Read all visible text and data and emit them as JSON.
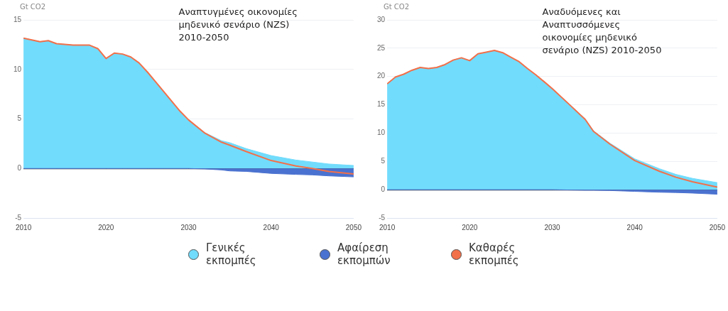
{
  "chart_data": [
    {
      "type": "area",
      "title": "Αναπτυγμένες οικονομίες μηδενικό σενάριο (NZS) 2010-2050",
      "ylabel": "Gt CO2",
      "legend": "bottom",
      "grid": "y",
      "marker": "none",
      "x": [
        2010,
        2012,
        2013,
        2014,
        2016,
        2018,
        2019,
        2020,
        2021,
        2022,
        2023,
        2024,
        2025,
        2026,
        2027,
        2028,
        2029,
        2030,
        2032,
        2034,
        2035,
        2037,
        2040,
        2043,
        2045,
        2047,
        2050
      ],
      "xlim": [
        2010,
        2050
      ],
      "xticks": [
        2010,
        2020,
        2030,
        2040,
        2050
      ],
      "ylim": [
        -5,
        15
      ],
      "yticks": [
        -5,
        0,
        5,
        10,
        15
      ],
      "series": [
        {
          "name": "Γενικές εκπομπές",
          "color": "#72dcfc",
          "values": [
            13.15,
            12.8,
            12.9,
            12.6,
            12.45,
            12.45,
            12.1,
            11.1,
            11.65,
            11.55,
            11.25,
            10.65,
            9.75,
            8.75,
            7.75,
            6.75,
            5.75,
            4.9,
            3.6,
            2.8,
            2.6,
            2.0,
            1.3,
            0.85,
            0.65,
            0.45,
            0.3
          ]
        },
        {
          "name": "Αφαίρεση εκπομπών",
          "color": "#4a72d0",
          "values": [
            0,
            0,
            0,
            0,
            0,
            0,
            0,
            0,
            0,
            0,
            0,
            0,
            0,
            0,
            0,
            0,
            0,
            0,
            -0.05,
            -0.15,
            -0.25,
            -0.3,
            -0.5,
            -0.6,
            -0.65,
            -0.75,
            -0.85
          ]
        },
        {
          "name": "Καθαρές εκπομπές",
          "color": "#f2704a",
          "type": "line",
          "values": [
            13.15,
            12.8,
            12.9,
            12.6,
            12.45,
            12.45,
            12.1,
            11.1,
            11.65,
            11.55,
            11.25,
            10.65,
            9.75,
            8.75,
            7.75,
            6.75,
            5.75,
            4.9,
            3.55,
            2.65,
            2.35,
            1.7,
            0.8,
            0.25,
            0,
            -0.3,
            -0.55
          ]
        }
      ]
    },
    {
      "type": "area",
      "title": "Αναδυόμενες και Αναπτυσσόμενες οικονομίες μηδενικό σενάριο (NZS) 2010-2050",
      "ylabel": "Gt CO2",
      "grid": "y",
      "marker": "none",
      "x": [
        2010,
        2011,
        2012,
        2013,
        2014,
        2015,
        2016,
        2017,
        2018,
        2019,
        2020,
        2021,
        2022,
        2023,
        2024,
        2025,
        2026,
        2027,
        2028,
        2029,
        2030,
        2032,
        2034,
        2035,
        2037,
        2040,
        2043,
        2045,
        2047,
        2050
      ],
      "xlim": [
        2010,
        2050
      ],
      "xticks": [
        2010,
        2020,
        2030,
        2040,
        2050
      ],
      "ylim": [
        -5,
        30
      ],
      "yticks": [
        -5,
        0,
        5,
        10,
        15,
        20,
        25,
        30
      ],
      "series": [
        {
          "color": "#72dcfc",
          "values": [
            18.7,
            19.9,
            20.4,
            21.1,
            21.6,
            21.4,
            21.6,
            22.1,
            22.9,
            23.3,
            22.8,
            24.0,
            24.3,
            24.6,
            24.2,
            23.4,
            22.6,
            21.4,
            20.3,
            19.1,
            17.85,
            15.2,
            12.5,
            10.4,
            8.2,
            5.45,
            3.7,
            2.7,
            2.0,
            1.25
          ]
        },
        {
          "color": "#4a72d0",
          "values": [
            0,
            0,
            0,
            0,
            0,
            0,
            0,
            0,
            0,
            0,
            0,
            0,
            0,
            0,
            0,
            0,
            0,
            0,
            0,
            0,
            0,
            -0.05,
            -0.1,
            -0.1,
            -0.15,
            -0.3,
            -0.45,
            -0.5,
            -0.6,
            -0.8
          ]
        },
        {
          "color": "#f2704a",
          "type": "line",
          "values": [
            18.7,
            19.9,
            20.4,
            21.1,
            21.6,
            21.4,
            21.6,
            22.1,
            22.9,
            23.3,
            22.8,
            24.0,
            24.3,
            24.6,
            24.2,
            23.4,
            22.6,
            21.4,
            20.3,
            19.1,
            17.85,
            15.15,
            12.4,
            10.3,
            8.05,
            5.15,
            3.25,
            2.2,
            1.4,
            0.45
          ]
        }
      ]
    }
  ]
}
